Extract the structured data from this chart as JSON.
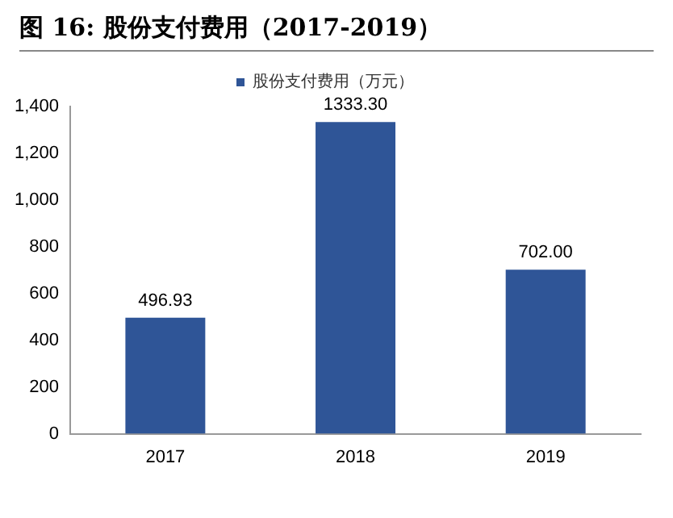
{
  "chart_data": {
    "type": "bar",
    "title": "图 16:  股份支付费用（2017-2019）",
    "categories": [
      "2017",
      "2018",
      "2019"
    ],
    "series": [
      {
        "name": "股份支付费用（万元）",
        "color": "#2f5597",
        "values": [
          496.93,
          1333.3,
          702.0
        ],
        "value_labels": [
          "496.93",
          "1333.30",
          "702.00"
        ]
      }
    ],
    "ylim": [
      0,
      1400
    ],
    "yticks": [
      0,
      200,
      400,
      600,
      800,
      {
        "value": 1000,
        "label": "1,000"
      },
      {
        "value": 1200,
        "label": "1,200"
      },
      {
        "value": 1400,
        "label": "1,400"
      }
    ],
    "grid": false,
    "legend": "top"
  }
}
